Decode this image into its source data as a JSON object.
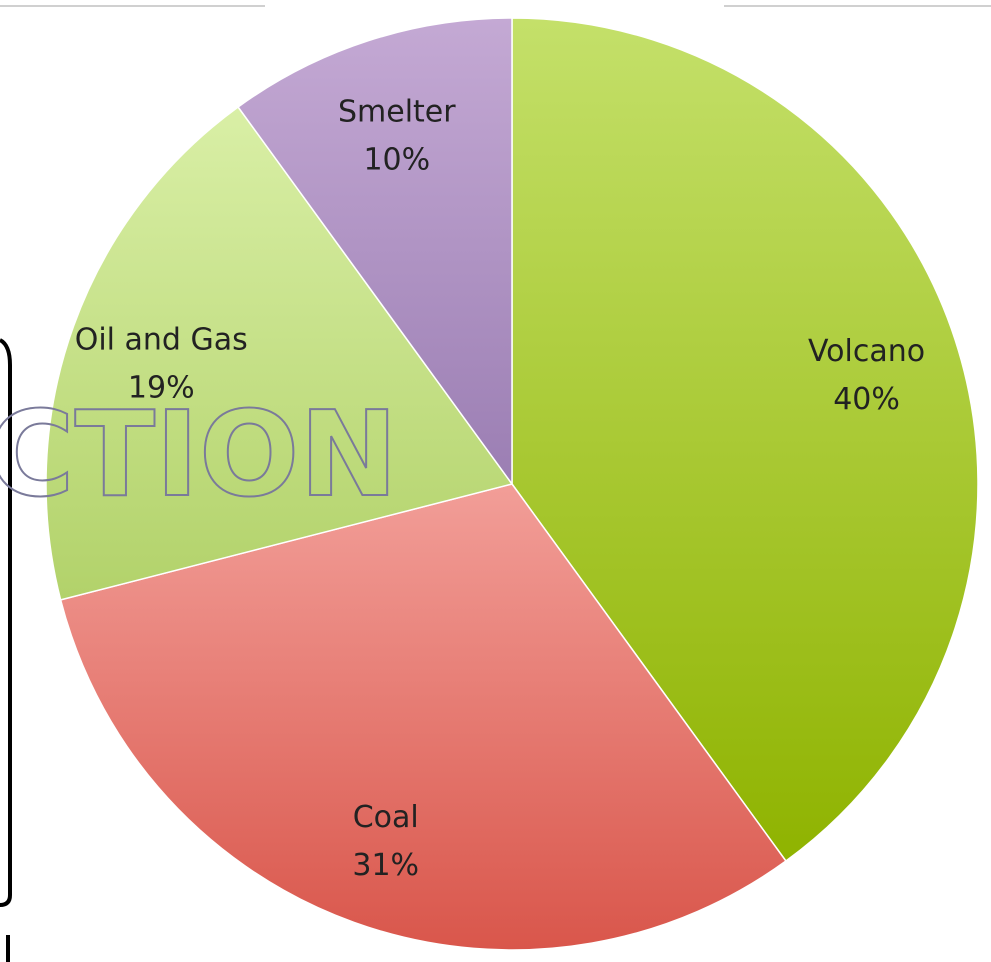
{
  "chart_data": {
    "type": "pie",
    "slices": [
      {
        "name": "Volcano",
        "value": 40,
        "label": "40%",
        "color_top": "#c4e06a",
        "color_bottom": "#8fb300"
      },
      {
        "name": "Coal",
        "value": 31,
        "label": "31%",
        "color_top": "#f29e98",
        "color_bottom": "#d9564b"
      },
      {
        "name": "Oil and Gas",
        "value": 19,
        "label": "19%",
        "color_top": "#d9efa6",
        "color_bottom": "#b2d26a"
      },
      {
        "name": "Smelter",
        "value": 10,
        "label": "10%",
        "color_top": "#c4a9d4",
        "color_bottom": "#9b7eb3"
      }
    ],
    "start_angle_deg": 0,
    "direction": "clockwise",
    "legend": "none"
  },
  "watermark": {
    "text": "CTION",
    "stroke_color": "#7a7a9a"
  }
}
